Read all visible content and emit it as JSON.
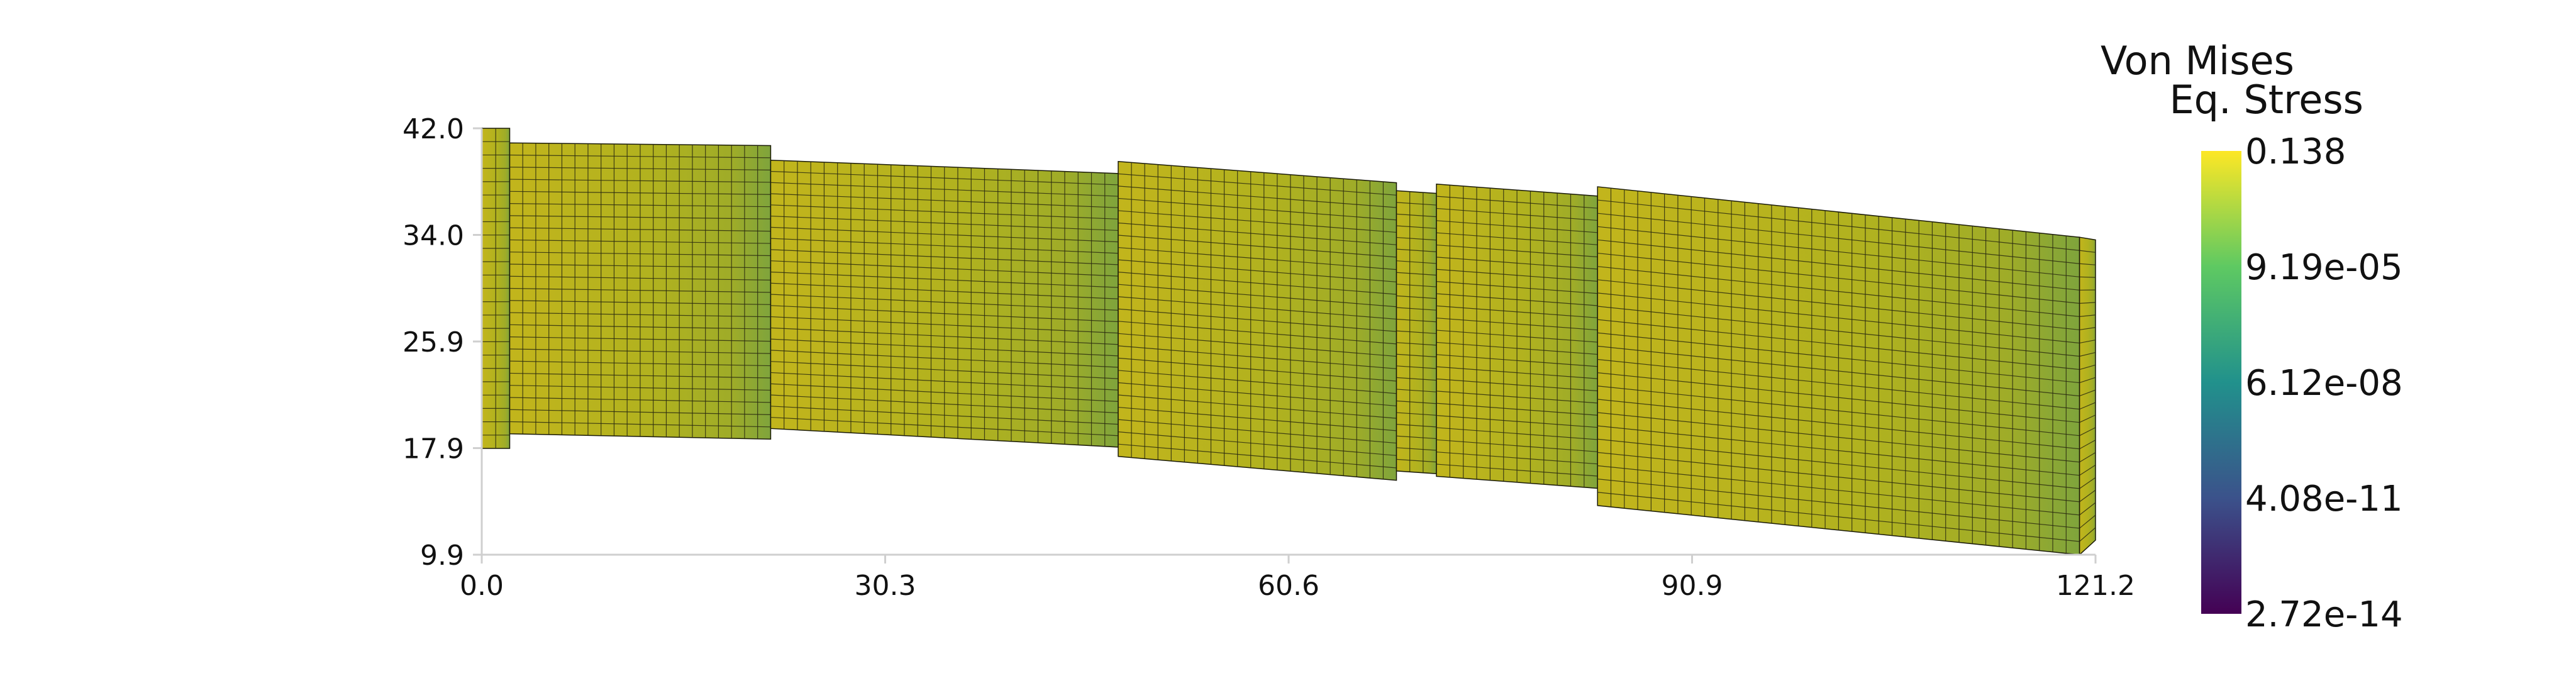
{
  "chart_data": {
    "type": "heatmap",
    "description_kind": "finite element mesh colored by field",
    "colorbar": {
      "title_line1": "Von Mises",
      "title_line2": "Eq. Stress",
      "tick_labels": [
        "0.138",
        "9.19e-05",
        "6.12e-08",
        "4.08e-11",
        "2.72e-14"
      ],
      "colormap": "viridis",
      "colors": [
        "#fde725",
        "#5ec962",
        "#21918c",
        "#3b528b",
        "#440154"
      ]
    },
    "x_axis": {
      "tick_labels": [
        "0.0",
        "30.3",
        "60.6",
        "90.9",
        "121.2"
      ],
      "range": [
        0.0,
        121.2
      ]
    },
    "y_axis": {
      "tick_labels": [
        "9.9",
        "17.9",
        "25.9",
        "34.0",
        "42.0"
      ],
      "range": [
        9.9,
        42.0
      ]
    },
    "mesh": {
      "grid_columns": 122,
      "grid_rows": 24,
      "segments": [
        {
          "x0": 0.0,
          "x1": 2.1,
          "y_bottom_start": 17.9,
          "y_bottom_end": 17.9,
          "y_top_start": 42.0,
          "y_top_end": 42.0
        },
        {
          "x0": 2.1,
          "x1": 21.7,
          "y_bottom_start": 19.0,
          "y_bottom_end": 18.6,
          "y_top_start": 40.9,
          "y_top_end": 40.7
        },
        {
          "x0": 21.7,
          "x1": 47.8,
          "y_bottom_start": 19.4,
          "y_bottom_end": 18.0,
          "y_top_start": 39.6,
          "y_top_end": 38.6
        },
        {
          "x0": 47.8,
          "x1": 68.7,
          "y_bottom_start": 17.3,
          "y_bottom_end": 15.5,
          "y_top_start": 39.5,
          "y_top_end": 37.9
        },
        {
          "x0": 68.7,
          "x1": 71.7,
          "y_bottom_start": 16.2,
          "y_bottom_end": 16.0,
          "y_top_start": 37.3,
          "y_top_end": 37.1
        },
        {
          "x0": 71.7,
          "x1": 83.8,
          "y_bottom_start": 15.8,
          "y_bottom_end": 14.9,
          "y_top_start": 37.8,
          "y_top_end": 36.9
        },
        {
          "x0": 83.8,
          "x1": 120.0,
          "y_bottom_start": 13.6,
          "y_bottom_end": 9.9,
          "y_top_start": 37.6,
          "y_top_end": 33.8
        },
        {
          "x0": 120.0,
          "x1": 121.2,
          "y_bottom_start": 9.9,
          "y_bottom_end": 11.0,
          "y_top_start": 33.8,
          "y_top_end": 33.6
        }
      ]
    },
    "grid": false,
    "legend": "right"
  }
}
